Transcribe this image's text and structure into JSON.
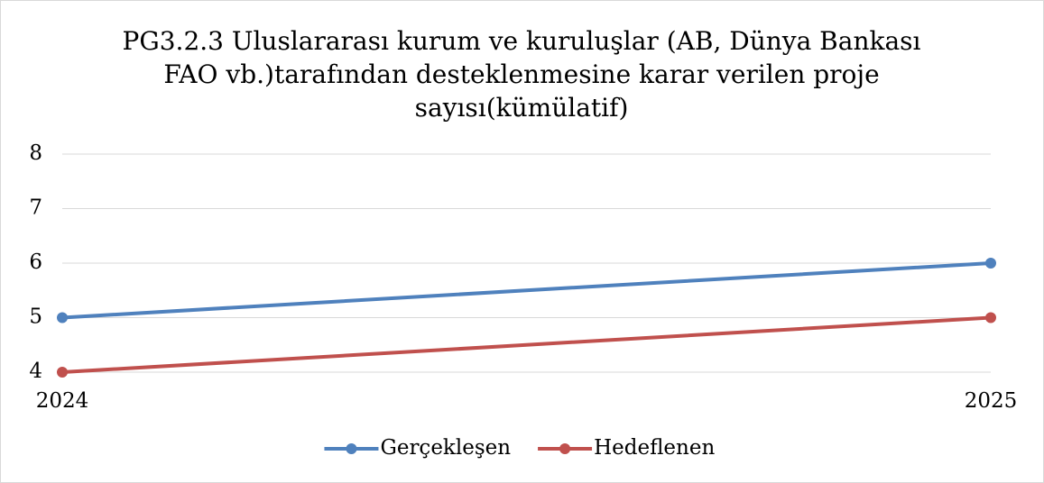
{
  "chart_data": {
    "type": "line",
    "title": "PG3.2.3 Uluslararası kurum ve kuruluşlar (AB, Dünya Bankası FAO vb.)tarafından desteklenmesine karar verilen proje sayısı(kümülatif)",
    "categories": [
      "2024",
      "2025"
    ],
    "series": [
      {
        "name": "Gerçekleşen",
        "color": "#4f81bd",
        "values": [
          5,
          6
        ]
      },
      {
        "name": "Hedeflenen",
        "color": "#c0504d",
        "values": [
          4,
          5
        ]
      }
    ],
    "ylim": [
      4,
      8
    ],
    "yticks": [
      4,
      5,
      6,
      7,
      8
    ],
    "grid": true,
    "legend": "bottom"
  }
}
